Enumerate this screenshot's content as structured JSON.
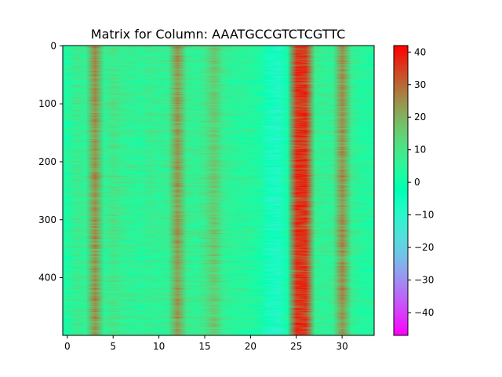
{
  "chart_data": {
    "type": "heatmap",
    "title": "Matrix for Column: AAATGCCGTCTCGTTC",
    "xlim": [
      -0.5,
      33.5
    ],
    "ylim": [
      499.5,
      -0.5
    ],
    "n_cols": 34,
    "n_rows": 500,
    "xticks": [
      0,
      5,
      10,
      15,
      20,
      25,
      30
    ],
    "yticks": [
      0,
      100,
      200,
      300,
      400
    ],
    "column_means": [
      3,
      8,
      6,
      25,
      6,
      10,
      7,
      6,
      5,
      7,
      6,
      7,
      24,
      8,
      6,
      9,
      16,
      7,
      5,
      5,
      4,
      2,
      -6,
      -8,
      1,
      36,
      36,
      8,
      6,
      7,
      25,
      7,
      4,
      3
    ],
    "colorbar": {
      "cmap": "rainbow",
      "vmin": -47,
      "vmax": 42,
      "ticks": [
        40,
        30,
        20,
        10,
        0,
        -10,
        -20,
        -30,
        -40
      ]
    },
    "grid": false
  }
}
